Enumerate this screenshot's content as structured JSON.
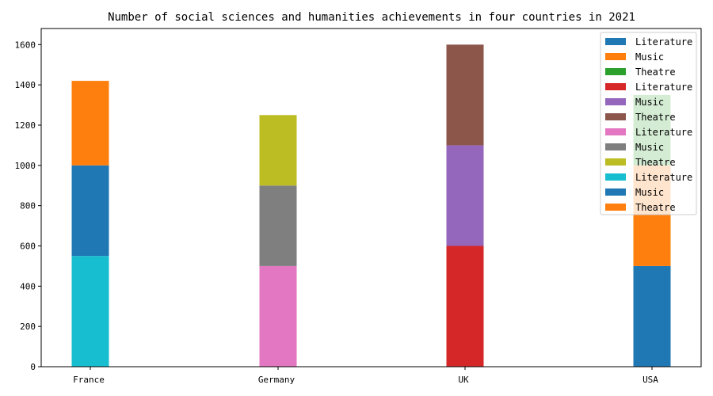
{
  "chart_data": {
    "type": "bar",
    "stacked": true,
    "title": "Number of social sciences and humanities achievements in four countries in 2021",
    "xlabel": "",
    "ylabel": "",
    "categories": [
      "France",
      "Germany",
      "UK",
      "USA"
    ],
    "ylim": [
      0,
      1680
    ],
    "yticks": [
      0,
      200,
      400,
      600,
      800,
      1000,
      1200,
      1400,
      1600
    ],
    "grid": false,
    "legend_position": "top-right",
    "bars": [
      {
        "category": "France",
        "segments": [
          {
            "label": "Literature",
            "value": 550,
            "color": "#17becf"
          },
          {
            "label": "Music",
            "value": 450,
            "color": "#1f77b4"
          },
          {
            "label": "Theatre",
            "value": 420,
            "color": "#ff7f0e"
          }
        ]
      },
      {
        "category": "Germany",
        "segments": [
          {
            "label": "Literature",
            "value": 500,
            "color": "#e377c2"
          },
          {
            "label": "Music",
            "value": 400,
            "color": "#7f7f7f"
          },
          {
            "label": "Theatre",
            "value": 350,
            "color": "#bcbd22"
          }
        ]
      },
      {
        "category": "UK",
        "segments": [
          {
            "label": "Literature",
            "value": 600,
            "color": "#d62728"
          },
          {
            "label": "Music",
            "value": 500,
            "color": "#9467bd"
          },
          {
            "label": "Theatre",
            "value": 500,
            "color": "#8c564b"
          }
        ]
      },
      {
        "category": "USA",
        "segments": [
          {
            "label": "Literature",
            "value": 500,
            "color": "#1f77b4"
          },
          {
            "label": "Music",
            "value": 500,
            "color": "#ff7f0e"
          },
          {
            "label": "Theatre",
            "value": 350,
            "color": "#2ca02c"
          }
        ]
      }
    ],
    "legend": [
      {
        "label": "Literature",
        "color": "#1f77b4"
      },
      {
        "label": "Music",
        "color": "#ff7f0e"
      },
      {
        "label": "Theatre",
        "color": "#2ca02c"
      },
      {
        "label": "Literature",
        "color": "#d62728"
      },
      {
        "label": "Music",
        "color": "#9467bd"
      },
      {
        "label": "Theatre",
        "color": "#8c564b"
      },
      {
        "label": "Literature",
        "color": "#e377c2"
      },
      {
        "label": "Music",
        "color": "#7f7f7f"
      },
      {
        "label": "Theatre",
        "color": "#bcbd22"
      },
      {
        "label": "Literature",
        "color": "#17becf"
      },
      {
        "label": "Music",
        "color": "#1f77b4"
      },
      {
        "label": "Theatre",
        "color": "#ff7f0e"
      }
    ]
  }
}
